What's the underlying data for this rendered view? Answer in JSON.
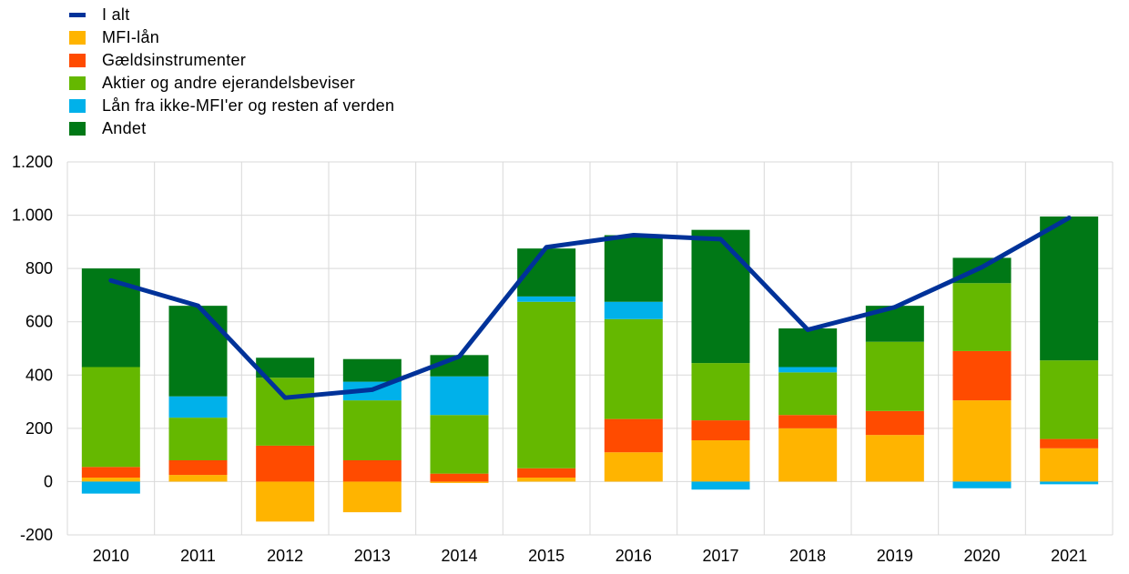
{
  "legend": [
    {
      "key": "total",
      "label": "I alt",
      "color": "#003299",
      "kind": "line"
    },
    {
      "key": "mfi",
      "label": "MFI-lån",
      "color": "#FFB400",
      "kind": "bar"
    },
    {
      "key": "debt",
      "label": "Gældsinstrumenter",
      "color": "#FF4B00",
      "kind": "bar"
    },
    {
      "key": "equity",
      "label": "Aktier og andre ejerandelsbeviser",
      "color": "#65B800",
      "kind": "bar"
    },
    {
      "key": "nonmfi",
      "label": "Lån fra ikke-MFI'er og resten af verden",
      "color": "#00B1EA",
      "kind": "bar"
    },
    {
      "key": "other",
      "label": "Andet",
      "color": "#007816",
      "kind": "bar"
    }
  ],
  "chart_data": {
    "type": "bar",
    "stacked": true,
    "categories": [
      "2010",
      "2011",
      "2012",
      "2013",
      "2014",
      "2015",
      "2016",
      "2017",
      "2018",
      "2019",
      "2020",
      "2021"
    ],
    "series": [
      {
        "name": "MFI-lån",
        "color": "#FFB400",
        "values": [
          15,
          25,
          -150,
          -115,
          -5,
          15,
          110,
          155,
          200,
          175,
          305,
          125
        ]
      },
      {
        "name": "Gældsinstrumenter",
        "color": "#FF4B00",
        "values": [
          40,
          55,
          135,
          80,
          30,
          35,
          125,
          75,
          50,
          90,
          185,
          35
        ]
      },
      {
        "name": "Aktier og andre ejerandelsbeviser",
        "color": "#65B800",
        "values": [
          375,
          160,
          255,
          225,
          220,
          625,
          375,
          215,
          160,
          260,
          255,
          295
        ]
      },
      {
        "name": "Lån fra ikke-MFI'er og resten af verden",
        "color": "#00B1EA",
        "values": [
          -45,
          80,
          0,
          70,
          145,
          20,
          65,
          -30,
          20,
          0,
          -25,
          -10
        ]
      },
      {
        "name": "Andet",
        "color": "#007816",
        "values": [
          370,
          340,
          75,
          85,
          80,
          180,
          250,
          500,
          145,
          135,
          95,
          540
        ]
      }
    ],
    "line": {
      "name": "I alt",
      "color": "#003299",
      "values": [
        755,
        660,
        315,
        345,
        470,
        880,
        925,
        910,
        570,
        655,
        805,
        990
      ]
    },
    "ylim": [
      -200,
      1200
    ],
    "yticks": [
      -200,
      0,
      200,
      400,
      600,
      800,
      1000,
      1200
    ],
    "ytick_labels": [
      "-200",
      "0",
      "200",
      "400",
      "600",
      "800",
      "1.000",
      "1.200"
    ],
    "grid": true,
    "legend_position": "top-left"
  }
}
